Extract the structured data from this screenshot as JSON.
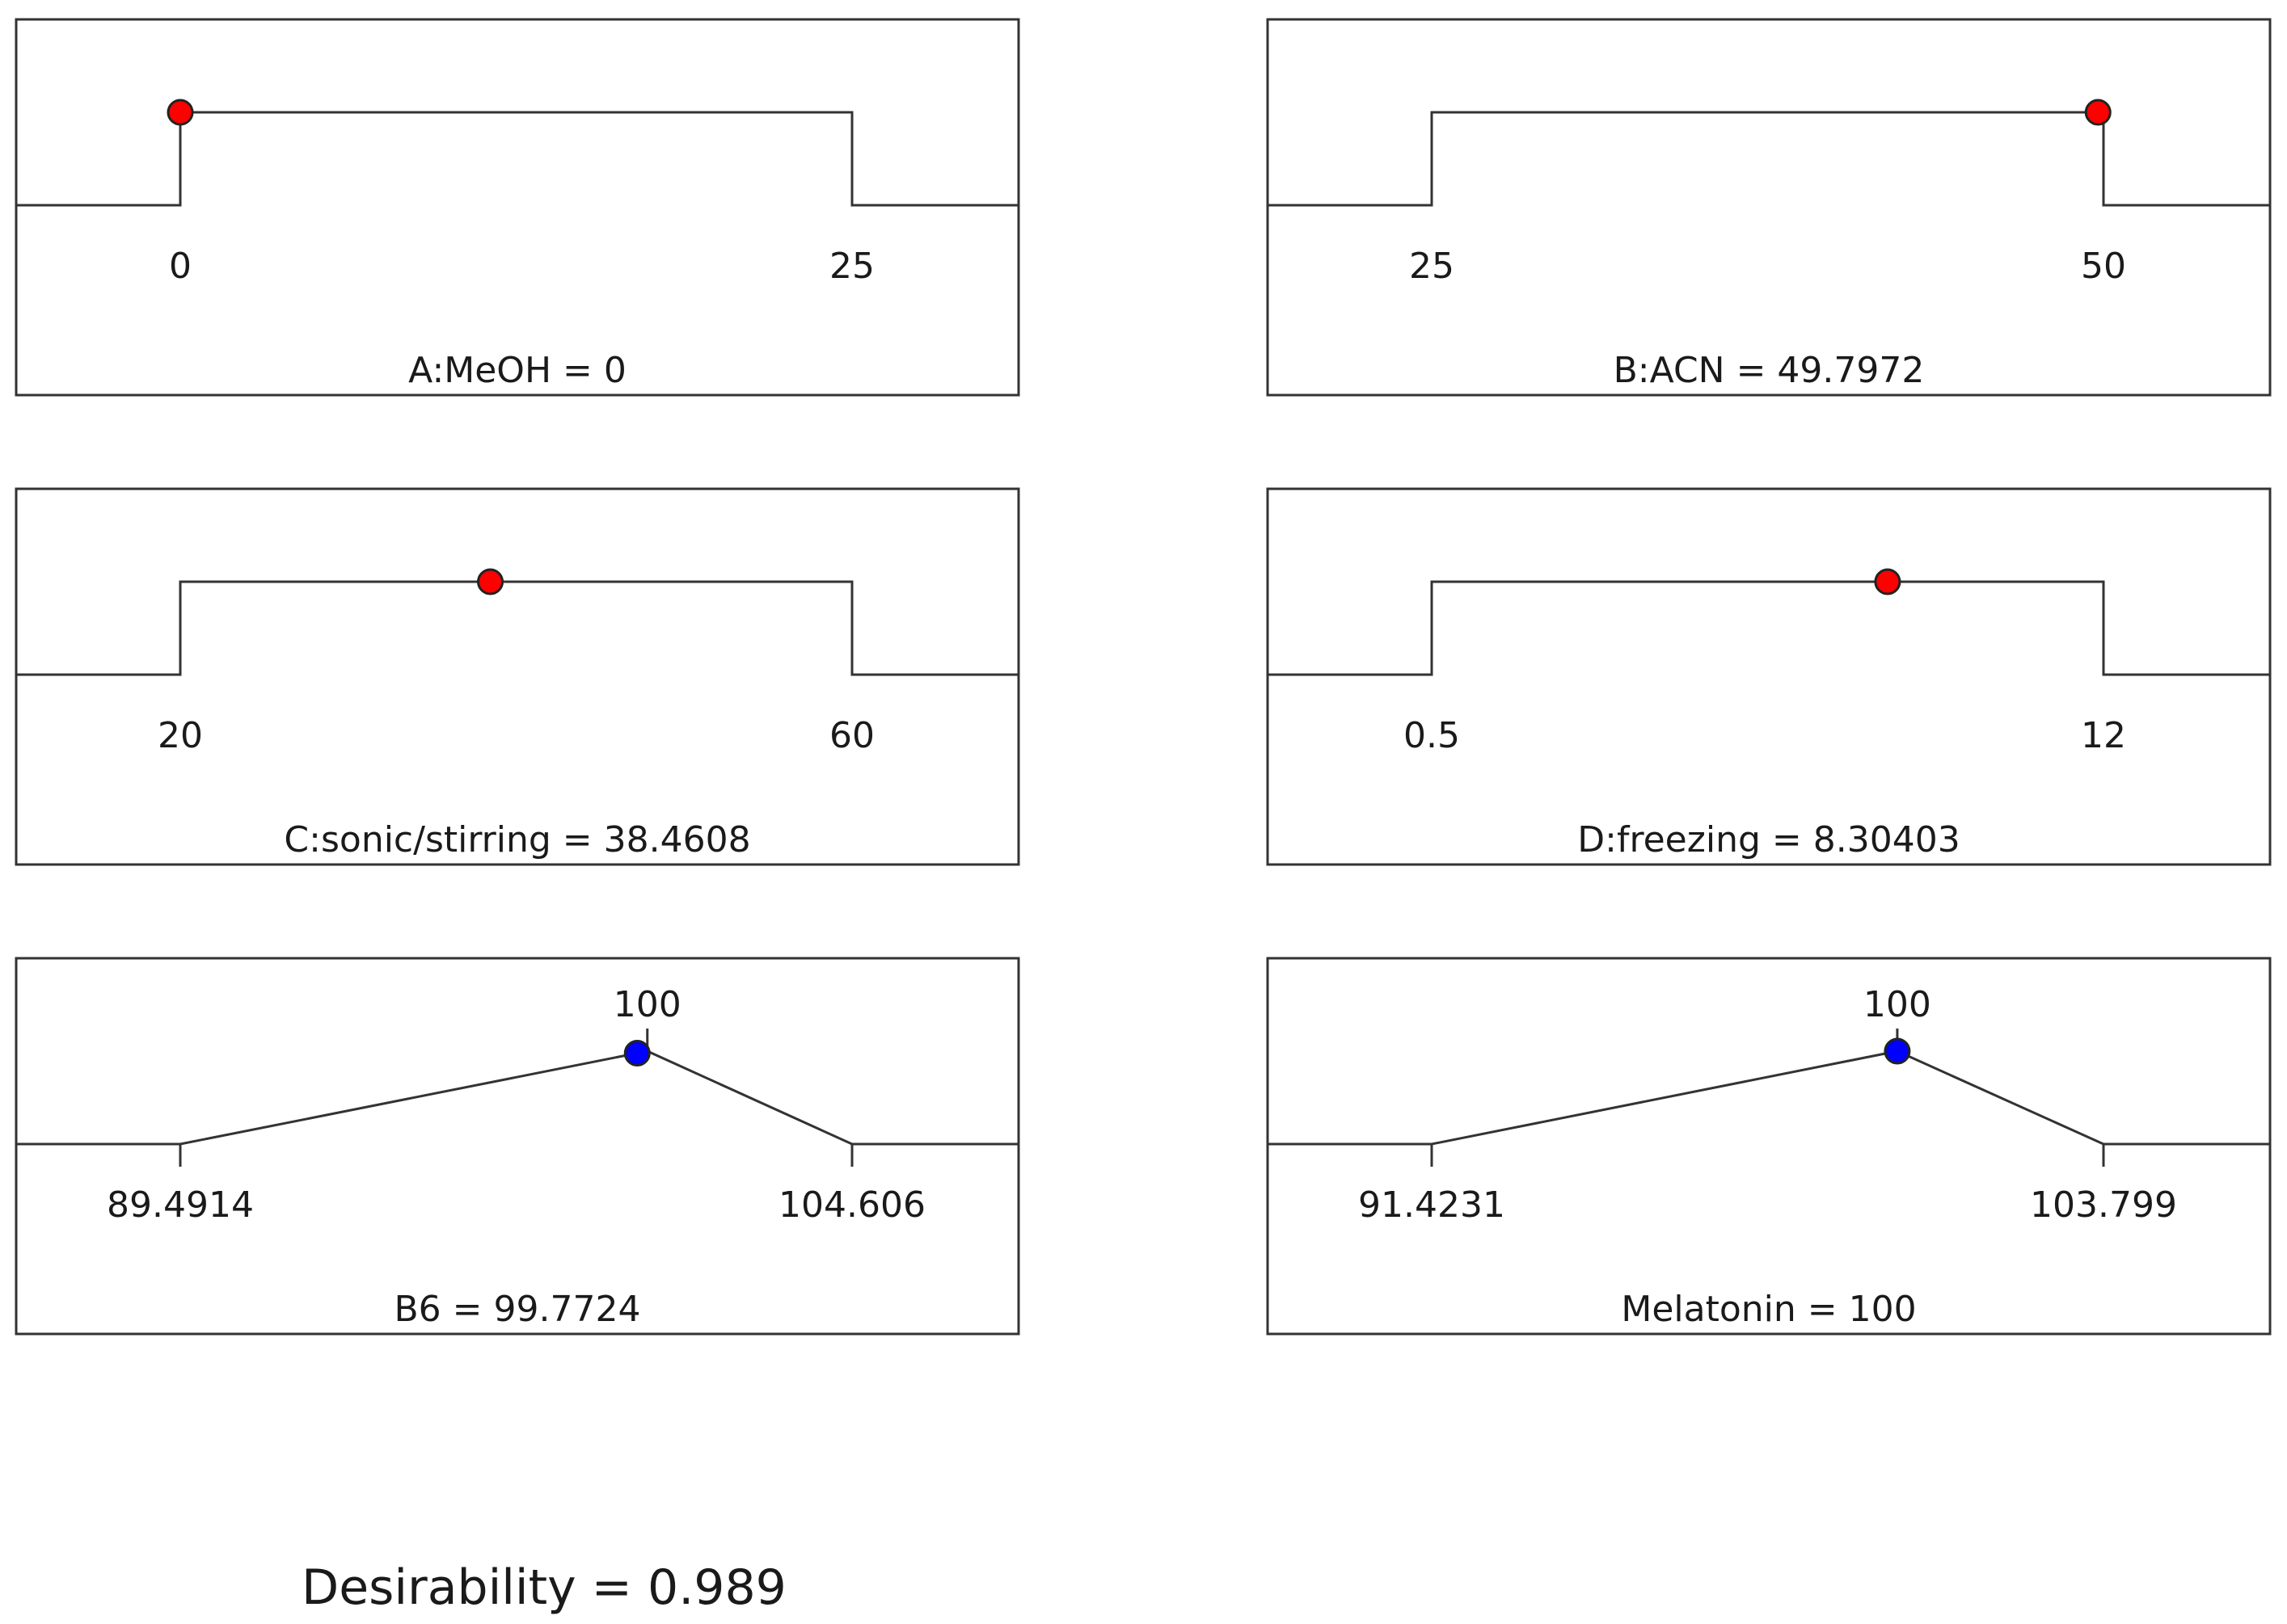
{
  "chart_data": [
    {
      "type": "line",
      "kind": "factor-ramp",
      "label": "A:MeOH = 0",
      "low": 0,
      "high": 25,
      "low_label": "0",
      "high_label": "25",
      "value": 0,
      "point_color": "#ff0000"
    },
    {
      "type": "line",
      "kind": "factor-ramp",
      "label": "B:ACN = 49.7972",
      "low": 25,
      "high": 50,
      "low_label": "25",
      "high_label": "50",
      "value": 49.7972,
      "point_color": "#ff0000"
    },
    {
      "type": "line",
      "kind": "factor-ramp",
      "label": "C:sonic/stirring = 38.4608",
      "low": 20,
      "high": 60,
      "low_label": "20",
      "high_label": "60",
      "value": 38.4608,
      "point_color": "#ff0000"
    },
    {
      "type": "line",
      "kind": "factor-ramp",
      "label": "D:freezing = 8.30403",
      "low": 0.5,
      "high": 12,
      "low_label": "0.5",
      "high_label": "12",
      "value": 8.30403,
      "point_color": "#ff0000"
    },
    {
      "type": "line",
      "kind": "response-target",
      "label": "B6 = 99.7724",
      "low": 89.4914,
      "high": 104.606,
      "target": 100,
      "low_label": "89.4914",
      "high_label": "104.606",
      "target_label": "100",
      "value": 99.7724,
      "point_color": "#0000ff"
    },
    {
      "type": "line",
      "kind": "response-target",
      "label": "Melatonin = 100",
      "low": 91.4231,
      "high": 103.799,
      "target": 100,
      "low_label": "91.4231",
      "high_label": "103.799",
      "target_label": "100",
      "value": 100,
      "point_color": "#0000ff"
    }
  ],
  "summary": {
    "desirability_label": "Desirability = 0.989"
  }
}
